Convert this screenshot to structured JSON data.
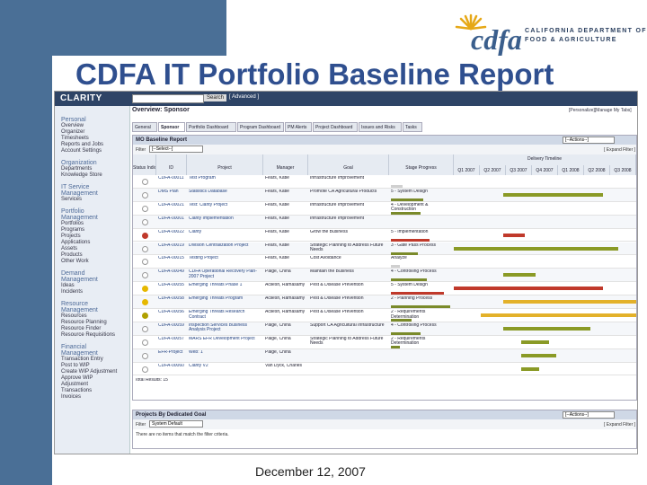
{
  "logo": {
    "text": "cdfa",
    "dept_line1": "CALIFORNIA DEPARTMENT OF",
    "dept_line2": "FOOD & AGRICULTURE"
  },
  "slide_title": "CDFA IT Portfolio Baseline Report",
  "footer_date": "December 12, 2007",
  "app": {
    "brand": "CLARITY",
    "search_button": "Search",
    "advanced_link": "[ Advanced ]",
    "page_title": "Overview: Sponsor",
    "personalize": "[Personalize][Manage My Tabs]",
    "nav": [
      {
        "label": "Personal",
        "header": true
      },
      {
        "label": "Overview"
      },
      {
        "label": "Organizer"
      },
      {
        "label": "Timesheets"
      },
      {
        "label": "Reports and Jobs"
      },
      {
        "label": "Account Settings"
      },
      {
        "label": "Organization",
        "header": true
      },
      {
        "label": "Departments"
      },
      {
        "label": "Knowledge Store"
      },
      {
        "label": "IT Service",
        "header": true
      },
      {
        "label": "Management",
        "header": true
      },
      {
        "label": "Services"
      },
      {
        "label": "Portfolio",
        "header": true
      },
      {
        "label": "Management",
        "header": true
      },
      {
        "label": "Portfolios"
      },
      {
        "label": "Programs"
      },
      {
        "label": "Projects"
      },
      {
        "label": "Applications"
      },
      {
        "label": "Assets"
      },
      {
        "label": "Products"
      },
      {
        "label": "Other Work"
      },
      {
        "label": "Demand",
        "header": true
      },
      {
        "label": "Management",
        "header": true
      },
      {
        "label": "Ideas"
      },
      {
        "label": "Incidents"
      },
      {
        "label": "Resource",
        "header": true
      },
      {
        "label": "Management",
        "header": true
      },
      {
        "label": "Resources"
      },
      {
        "label": "Resource Planning"
      },
      {
        "label": "Resource Finder"
      },
      {
        "label": "Resource Requisitions"
      },
      {
        "label": "Financial",
        "header": true
      },
      {
        "label": "Management",
        "header": true
      },
      {
        "label": "Transaction Entry"
      },
      {
        "label": "Post to WIP"
      },
      {
        "label": "Create WIP Adjustment"
      },
      {
        "label": "Approve WIP"
      },
      {
        "label": "Adjustment"
      },
      {
        "label": "Transactions"
      },
      {
        "label": "Invoices"
      }
    ],
    "tabs": [
      "General",
      "Sponsor",
      "Portfolio Dashboard",
      "Program Dashboard",
      "PM Alerts",
      "Project Dashboard",
      "Issues and Risks",
      "Tasks"
    ],
    "active_tab": "Sponsor",
    "panel1": {
      "title": "MO Baseline Report",
      "filter_label": "Filter",
      "filter_value": "[--Select--]",
      "actions": "[--Actions--]",
      "expand": "[ Expand Filter ]",
      "columns": [
        "Status Indicator",
        "ID",
        "Project",
        "Manager",
        "Goal",
        "Stage Progress"
      ],
      "timeline_header": "Delivery Timeline",
      "quarters": [
        "Q1 2007",
        "Q2 2007",
        "Q3 2007",
        "Q4 2007",
        "Q1 2008",
        "Q2 2008",
        "Q3 2008"
      ],
      "rows": [
        {
          "status": "g",
          "id": "CDFA-00011",
          "project": "Test Program",
          "manager": "Fears, Katie",
          "goal": "Infrastructure Improvement",
          "stage": "",
          "stage_pct": 0.2,
          "stage_color": "gray",
          "tl": [
            0.0,
            0.0
          ],
          "tl_color": "gray"
        },
        {
          "status": "g",
          "id": "DMS Plan",
          "project": "Statistics Database",
          "manager": "Fears, Katie",
          "goal": "Promote CA Agricultural Products",
          "stage": "5 - System Design",
          "stage_pct": 0.55,
          "stage_color": "olive",
          "tl": [
            0.27,
            0.82
          ],
          "tl_color": "olive"
        },
        {
          "status": "g",
          "id": "CDFA-00021",
          "project": "Test: Clarity Project",
          "manager": "Fears, Katie",
          "goal": "Infrastructure Improvement",
          "stage": "4 - Development & Construction",
          "stage_pct": 0.5,
          "stage_color": "olive",
          "tl": [
            0.0,
            0.0
          ],
          "tl_color": "gray"
        },
        {
          "status": "g",
          "id": "CDFA-00001",
          "project": "Clarity Implementation",
          "manager": "Fears, Katie",
          "goal": "Infrastructure Improvement",
          "stage": "",
          "stage_pct": 0.0,
          "stage_color": "gray",
          "tl": [
            0.0,
            0.0
          ],
          "tl_color": "gray"
        },
        {
          "status": "r",
          "id": "CDFA-00022",
          "project": "Clarity",
          "manager": "Fears, Katie",
          "goal": "Grow the Business",
          "stage": "5 - Implementation",
          "stage_pct": 0.65,
          "stage_color": "red",
          "tl": [
            0.27,
            0.39
          ],
          "tl_color": "red"
        },
        {
          "status": "g",
          "id": "CDFA-00019",
          "project": "Division Centralization Project",
          "manager": "Fears, Katie",
          "goal": "Strategic Planning to Address Future Needs",
          "stage": "3 - Gate Pass Process",
          "stage_pct": 0.45,
          "stage_color": "olive",
          "tl": [
            0.0,
            0.9
          ],
          "tl_color": "olive"
        },
        {
          "status": "g",
          "id": "CDFA-00015",
          "project": "Testing Project",
          "manager": "Fears, Katie",
          "goal": "Cost Avoidance",
          "stage": "Analyze",
          "stage_pct": 0.15,
          "stage_color": "gray",
          "tl": [
            0.0,
            0.0
          ],
          "tl_color": "gray"
        },
        {
          "status": "g",
          "id": "CDFA-00049",
          "project": "CDFA Operational Recovery Plan-2007 Project",
          "manager": "Paige, China",
          "goal": "Maintain the Business",
          "stage": "4 - Controlling Process",
          "stage_pct": 0.6,
          "stage_color": "olive",
          "tl": [
            0.27,
            0.45
          ],
          "tl_color": "olive"
        },
        {
          "status": "y",
          "id": "CDFA-00055",
          "project": "Emerging Threats Phase 1",
          "manager": "Acllesh, Ramasamy",
          "goal": "Pest & Disease Prevention",
          "stage": "5 - System Design",
          "stage_pct": 0.9,
          "stage_color": "red",
          "tl": [
            0.0,
            0.82
          ],
          "tl_color": "red"
        },
        {
          "status": "y",
          "id": "CDFA-00058",
          "project": "Emerging Threats Program",
          "manager": "Acllesh, Ramasamy",
          "goal": "Pest & Disease Prevention",
          "stage": "2 - Planning Process",
          "stage_pct": 1.0,
          "stage_color": "yellow",
          "tl": [
            0.27,
            1.0
          ],
          "tl_color": "yellow"
        },
        {
          "status": "o",
          "id": "CDFA-00056",
          "project": "Emerging Threats Research Contract",
          "manager": "Acllesh, Ramasamy",
          "goal": "Pest & Disease Prevention",
          "stage": "2 - Requirements Determination",
          "stage_pct": 0.35,
          "stage_color": "olive",
          "tl": [
            0.15,
            1.0
          ],
          "tl_color": "yellow"
        },
        {
          "status": "g",
          "id": "CDFA-00059",
          "project": "Inspection Services Business Analysis Project",
          "manager": "Paige, China",
          "goal": "Support CA Agricultural Infrastructure",
          "stage": "4 - Controlling Process",
          "stage_pct": 0.5,
          "stage_color": "olive",
          "tl": [
            0.27,
            0.75
          ],
          "tl_color": "olive"
        },
        {
          "status": "g",
          "id": "CDFA-00057",
          "project": "MARS EFR Development Project",
          "manager": "Paige, China",
          "goal": "Strategic Planning to Address Future Needs",
          "stage": "2 - Requirements Determination",
          "stage_pct": 0.15,
          "stage_color": "olive",
          "tl": [
            0.37,
            0.52
          ],
          "tl_color": "olive"
        },
        {
          "status": "g",
          "id": "EFR-Project",
          "project": "Web: 1",
          "manager": "Paige, China",
          "goal": "",
          "stage": "",
          "stage_pct": 0.0,
          "stage_color": "gray",
          "tl": [
            0.37,
            0.56
          ],
          "tl_color": "olive"
        },
        {
          "status": "g",
          "id": "CDFA-00060",
          "project": "Clarity V2",
          "manager": "Van Dyck, Charles",
          "goal": "",
          "stage": "",
          "stage_pct": 0.0,
          "stage_color": "gray",
          "tl": [
            0.37,
            0.47
          ],
          "tl_color": "olive"
        }
      ],
      "total": "Total Results: 15"
    },
    "panel2": {
      "title": "Projects By Dedicated Goal",
      "filter_label": "Filter",
      "filter_value": "System Default",
      "actions": "[--Actions--]",
      "expand": "[ Expand Filter ]",
      "empty": "There are no items that match the filter criteria."
    }
  }
}
